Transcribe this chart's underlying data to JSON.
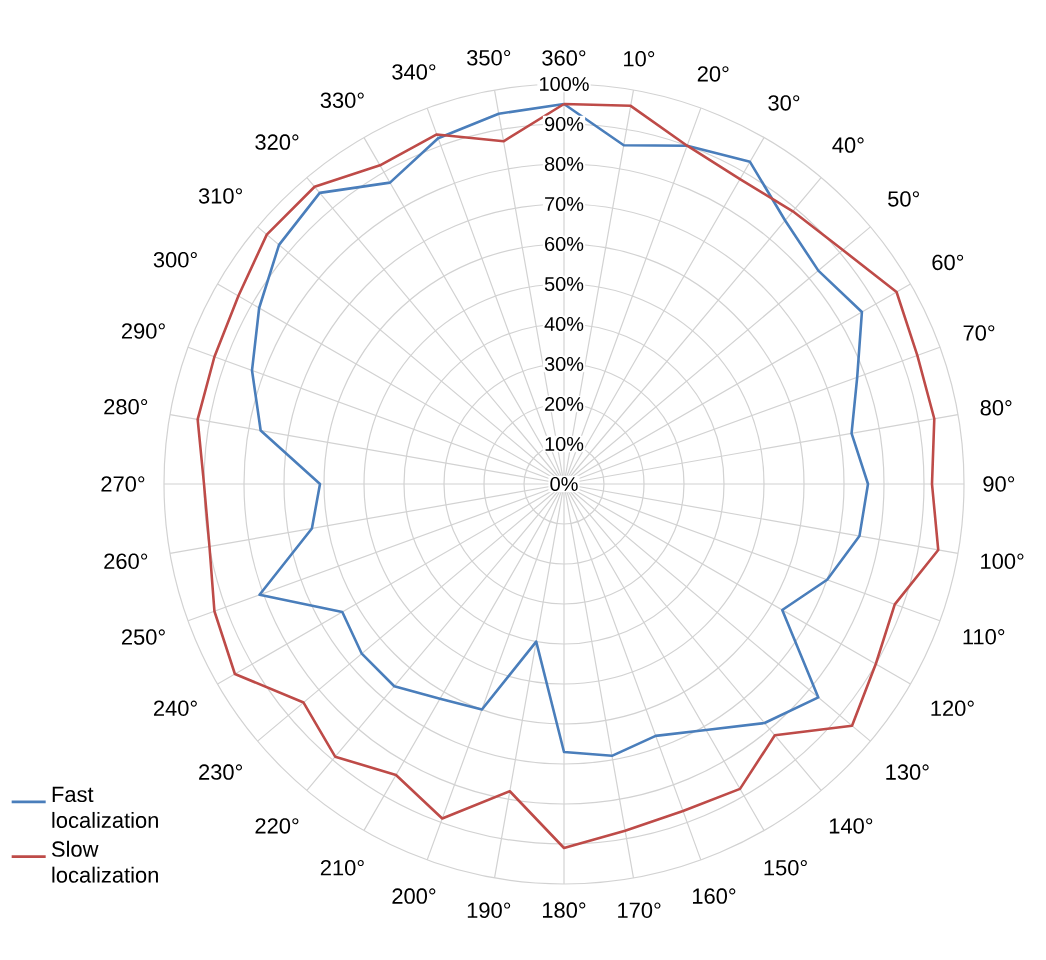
{
  "chart_data": {
    "type": "radar",
    "categories": [
      "360°",
      "10°",
      "20°",
      "30°",
      "40°",
      "50°",
      "60°",
      "70°",
      "80°",
      "90°",
      "100°",
      "110°",
      "120°",
      "130°",
      "140°",
      "150°",
      "160°",
      "170°",
      "180°",
      "190°",
      "200°",
      "210°",
      "220°",
      "230°",
      "240°",
      "250°",
      "260°",
      "270°",
      "280°",
      "290°",
      "300°",
      "310°",
      "320°",
      "330°",
      "340°",
      "350°"
    ],
    "series": [
      {
        "name": "Fast localization",
        "color": "#4a7ebb",
        "values": [
          95,
          86,
          90,
          93,
          86,
          83,
          86,
          78,
          73,
          76,
          75,
          70,
          63,
          83,
          78,
          71,
          67,
          69,
          67,
          40,
          60,
          62,
          66,
          66,
          64,
          81,
          64,
          61,
          77,
          83,
          88,
          93,
          95,
          87,
          92,
          94
        ]
      },
      {
        "name": "Slow localization",
        "color": "#be4b48",
        "values": [
          95,
          96,
          90,
          88,
          89,
          91,
          96,
          94,
          94,
          92,
          95,
          88,
          90,
          94,
          82,
          88,
          87,
          88,
          91,
          78,
          89,
          84,
          89,
          85,
          95,
          93,
          90,
          90,
          93,
          93,
          94,
          97,
          97,
          92,
          93,
          87
        ]
      }
    ],
    "ylim": [
      0,
      100
    ],
    "yticks": [
      {
        "value": 0,
        "label": "0%"
      },
      {
        "value": 10,
        "label": "10%"
      },
      {
        "value": 20,
        "label": "20%"
      },
      {
        "value": 30,
        "label": "30%"
      },
      {
        "value": 40,
        "label": "40%"
      },
      {
        "value": 50,
        "label": "50%"
      },
      {
        "value": 60,
        "label": "60%"
      },
      {
        "value": 70,
        "label": "70%"
      },
      {
        "value": 80,
        "label": "80%"
      },
      {
        "value": 90,
        "label": "90%"
      },
      {
        "value": 100,
        "label": "100%"
      }
    ],
    "grid": true,
    "legend": "bottom left"
  }
}
